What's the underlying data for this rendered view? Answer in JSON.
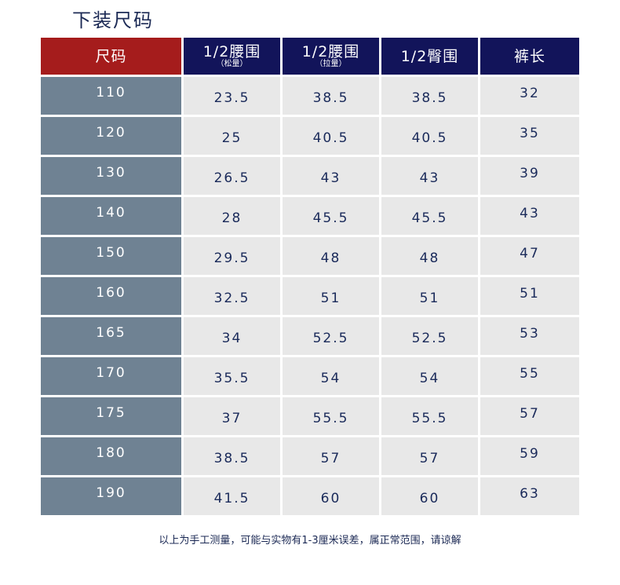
{
  "title": "下装尺码",
  "headers": [
    {
      "main": "尺码",
      "sub": ""
    },
    {
      "main": "1/2腰围",
      "sub": "（松量）"
    },
    {
      "main": "1/2腰围",
      "sub": "（拉量）"
    },
    {
      "main": "1/2臀围",
      "sub": ""
    },
    {
      "main": "裤长",
      "sub": ""
    }
  ],
  "rows": [
    [
      "110",
      "23.5",
      "38.5",
      "38.5",
      "32"
    ],
    [
      "120",
      "25",
      "40.5",
      "40.5",
      "35"
    ],
    [
      "130",
      "26.5",
      "43",
      "43",
      "39"
    ],
    [
      "140",
      "28",
      "45.5",
      "45.5",
      "43"
    ],
    [
      "150",
      "29.5",
      "48",
      "48",
      "47"
    ],
    [
      "160",
      "32.5",
      "51",
      "51",
      "51"
    ],
    [
      "165",
      "34",
      "52.5",
      "52.5",
      "53"
    ],
    [
      "170",
      "35.5",
      "54",
      "54",
      "55"
    ],
    [
      "175",
      "37",
      "55.5",
      "55.5",
      "57"
    ],
    [
      "180",
      "38.5",
      "57",
      "57",
      "59"
    ],
    [
      "190",
      "41.5",
      "60",
      "60",
      "63"
    ]
  ],
  "footnote": "以上为手工测量，可能与实物有1-3厘米误差，属正常范围，请谅解",
  "colors": {
    "header_first": "#a51c1c",
    "header": "#12145a",
    "size_column": "#6f8293",
    "value_cells": "#e8e8e8",
    "text": "#1a2a5a"
  }
}
